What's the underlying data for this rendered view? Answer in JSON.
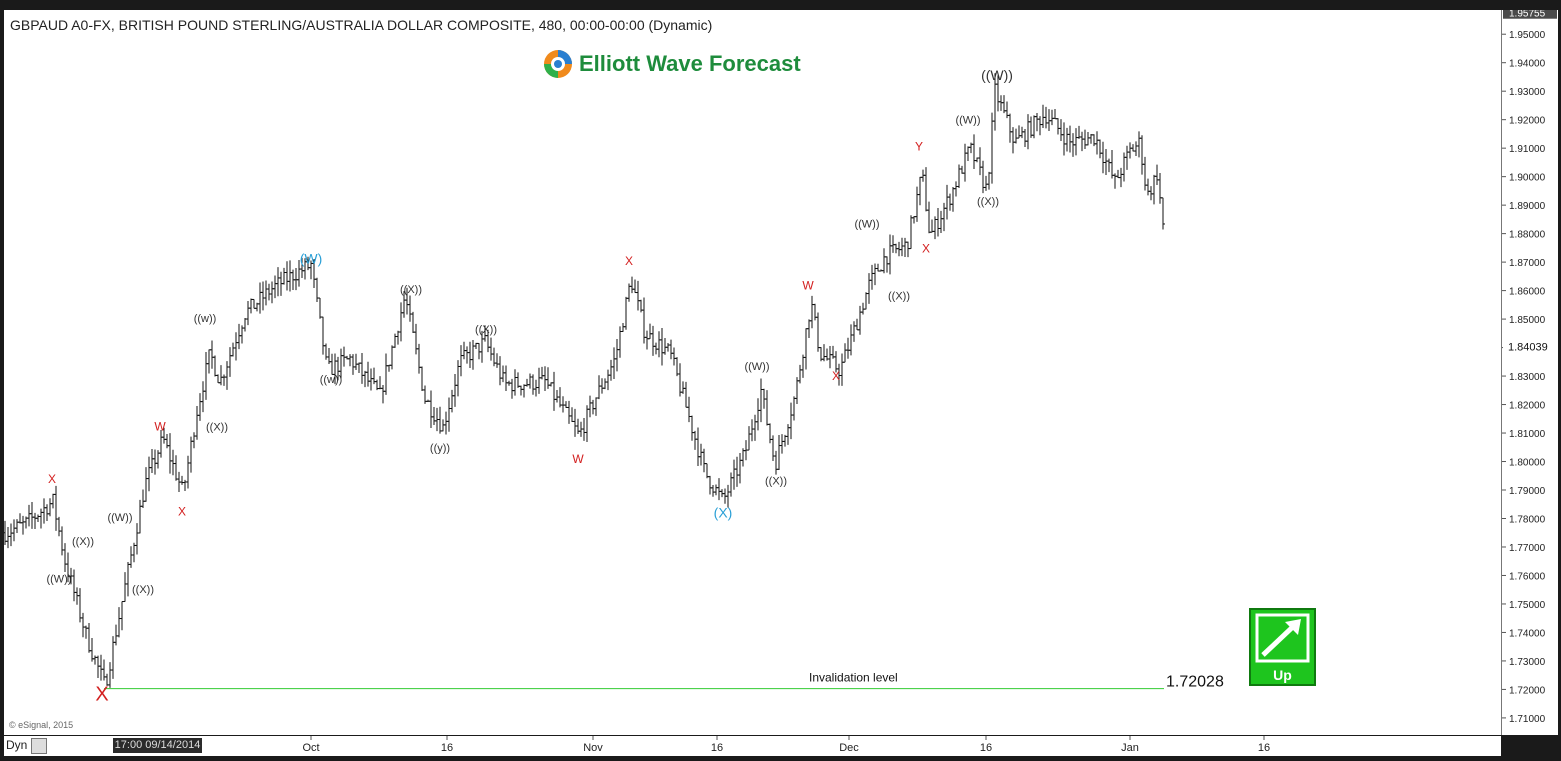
{
  "header": {
    "title": "GBPAUD A0-FX, BRITISH POUND STERLING/AUSTRALIA DOLLAR COMPOSITE, 480, 00:00-00:00 (Dynamic)",
    "logo_text": "Elliott Wave Forecast",
    "copyright": "© eSignal, 2015"
  },
  "footer": {
    "dyn_label": "Dyn",
    "date_badge": "17:00 09/14/2014"
  },
  "indicator": {
    "label": "Up",
    "icon": "up-arrow-icon",
    "color": "#1ec51e"
  },
  "colors": {
    "red": "#d32020",
    "blue": "#2a9fd6",
    "dark": "#333333",
    "invalidation_line": "#33cc33"
  },
  "chart_data": {
    "type": "ohlc",
    "symbol": "GBPAUD",
    "ylim": [
      1.704,
      1.9585
    ],
    "y_ticks": [
      "1.95000",
      "1.94000",
      "1.93000",
      "1.92000",
      "1.91000",
      "1.90000",
      "1.89000",
      "1.88000",
      "1.87000",
      "1.86000",
      "1.85000",
      "1.84000",
      "1.83000",
      "1.82000",
      "1.81000",
      "1.80000",
      "1.79000",
      "1.78000",
      "1.77000",
      "1.76000",
      "1.75000",
      "1.74000",
      "1.73000",
      "1.72000",
      "1.71000"
    ],
    "last_price_label": "1.95755",
    "current_price_label": "1.84039",
    "x_range": [
      0,
      1496
    ],
    "x_ticks": [
      {
        "label": "Oct",
        "x": 307
      },
      {
        "label": "16",
        "x": 443
      },
      {
        "label": "Nov",
        "x": 589
      },
      {
        "label": "16",
        "x": 713
      },
      {
        "label": "Dec",
        "x": 845
      },
      {
        "label": "16",
        "x": 982
      },
      {
        "label": "Jan",
        "x": 1126
      },
      {
        "label": "16",
        "x": 1260
      }
    ],
    "price_path": [
      [
        0,
        1.775
      ],
      [
        20,
        1.778
      ],
      [
        48,
        1.786
      ],
      [
        60,
        1.765
      ],
      [
        82,
        1.738
      ],
      [
        100,
        1.721
      ],
      [
        125,
        1.765
      ],
      [
        140,
        1.792
      ],
      [
        158,
        1.808
      ],
      [
        178,
        1.789
      ],
      [
        192,
        1.818
      ],
      [
        205,
        1.838
      ],
      [
        215,
        1.828
      ],
      [
        240,
        1.852
      ],
      [
        268,
        1.861
      ],
      [
        290,
        1.866
      ],
      [
        306,
        1.869
      ],
      [
        322,
        1.832
      ],
      [
        345,
        1.836
      ],
      [
        375,
        1.823
      ],
      [
        400,
        1.858
      ],
      [
        420,
        1.822
      ],
      [
        438,
        1.812
      ],
      [
        455,
        1.835
      ],
      [
        480,
        1.842
      ],
      [
        500,
        1.827
      ],
      [
        540,
        1.828
      ],
      [
        574,
        1.809
      ],
      [
        590,
        1.822
      ],
      [
        610,
        1.836
      ],
      [
        626,
        1.864
      ],
      [
        640,
        1.845
      ],
      [
        665,
        1.838
      ],
      [
        682,
        1.818
      ],
      [
        700,
        1.796
      ],
      [
        718,
        1.786
      ],
      [
        740,
        1.803
      ],
      [
        756,
        1.825
      ],
      [
        770,
        1.799
      ],
      [
        790,
        1.823
      ],
      [
        806,
        1.856
      ],
      [
        815,
        1.838
      ],
      [
        835,
        1.832
      ],
      [
        850,
        1.847
      ],
      [
        864,
        1.862
      ],
      [
        880,
        1.872
      ],
      [
        902,
        1.876
      ],
      [
        917,
        1.901
      ],
      [
        925,
        1.879
      ],
      [
        945,
        1.893
      ],
      [
        965,
        1.91
      ],
      [
        982,
        1.895
      ],
      [
        990,
        1.93
      ],
      [
        1010,
        1.912
      ],
      [
        1040,
        1.922
      ],
      [
        1065,
        1.912
      ],
      [
        1090,
        1.914
      ],
      [
        1110,
        1.898
      ],
      [
        1125,
        1.909
      ],
      [
        1135,
        1.912
      ],
      [
        1142,
        1.893
      ],
      [
        1152,
        1.901
      ],
      [
        1158,
        1.883
      ]
    ],
    "invalidation": {
      "label": "Invalidation level",
      "price_label": "1.72028",
      "price": 1.72028,
      "x_start": 100,
      "x_end": 1160
    },
    "annotations": [
      {
        "text": "X",
        "x": 48,
        "price": 1.7925,
        "color": "red",
        "size": 12
      },
      {
        "text": "((X))",
        "x": 79,
        "price": 1.7707,
        "color": "dark",
        "size": 11
      },
      {
        "text": "((W))",
        "x": 55,
        "price": 1.7575,
        "color": "dark",
        "size": 11
      },
      {
        "text": "X",
        "x": 98,
        "price": 1.7161,
        "color": "red",
        "size": 20
      },
      {
        "text": "((W))",
        "x": 116,
        "price": 1.7792,
        "color": "dark",
        "size": 11
      },
      {
        "text": "((X))",
        "x": 139,
        "price": 1.7538,
        "color": "dark",
        "size": 11
      },
      {
        "text": "W",
        "x": 156,
        "price": 1.8109,
        "color": "red",
        "size": 12
      },
      {
        "text": "X",
        "x": 178,
        "price": 1.7811,
        "color": "red",
        "size": 12
      },
      {
        "text": "((w))",
        "x": 201,
        "price": 1.8489,
        "color": "dark",
        "size": 11
      },
      {
        "text": "((X))",
        "x": 213,
        "price": 1.8109,
        "color": "dark",
        "size": 11
      },
      {
        "text": "(W)",
        "x": 307,
        "price": 1.8696,
        "color": "blue",
        "size": 14
      },
      {
        "text": "((w))",
        "x": 327,
        "price": 1.8276,
        "color": "dark",
        "size": 11
      },
      {
        "text": "((X))",
        "x": 407,
        "price": 1.8592,
        "color": "dark",
        "size": 11
      },
      {
        "text": "((X))",
        "x": 482,
        "price": 1.8451,
        "color": "dark",
        "size": 11
      },
      {
        "text": "((y))",
        "x": 436,
        "price": 1.8035,
        "color": "dark",
        "size": 11
      },
      {
        "text": "W",
        "x": 574,
        "price": 1.7995,
        "color": "red",
        "size": 12
      },
      {
        "text": "X",
        "x": 625,
        "price": 1.8689,
        "color": "red",
        "size": 12
      },
      {
        "text": "(X)",
        "x": 719,
        "price": 1.7803,
        "color": "blue",
        "size": 14
      },
      {
        "text": "((W))",
        "x": 753,
        "price": 1.8322,
        "color": "dark",
        "size": 11
      },
      {
        "text": "((X))",
        "x": 772,
        "price": 1.7919,
        "color": "dark",
        "size": 11
      },
      {
        "text": "W",
        "x": 804,
        "price": 1.8604,
        "color": "red",
        "size": 12
      },
      {
        "text": "X",
        "x": 832,
        "price": 1.8286,
        "color": "red",
        "size": 12
      },
      {
        "text": "((W))",
        "x": 863,
        "price": 1.8822,
        "color": "dark",
        "size": 11
      },
      {
        "text": "((X))",
        "x": 895,
        "price": 1.8568,
        "color": "dark",
        "size": 11
      },
      {
        "text": "Y",
        "x": 915,
        "price": 1.9092,
        "color": "red",
        "size": 12
      },
      {
        "text": "X",
        "x": 922,
        "price": 1.8734,
        "color": "red",
        "size": 12
      },
      {
        "text": "((W))",
        "x": 964,
        "price": 1.9186,
        "color": "dark",
        "size": 11
      },
      {
        "text": "((W))",
        "x": 993,
        "price": 1.934,
        "color": "dark",
        "size": 14
      },
      {
        "text": "((X))",
        "x": 984,
        "price": 1.8901,
        "color": "dark",
        "size": 11
      }
    ]
  }
}
